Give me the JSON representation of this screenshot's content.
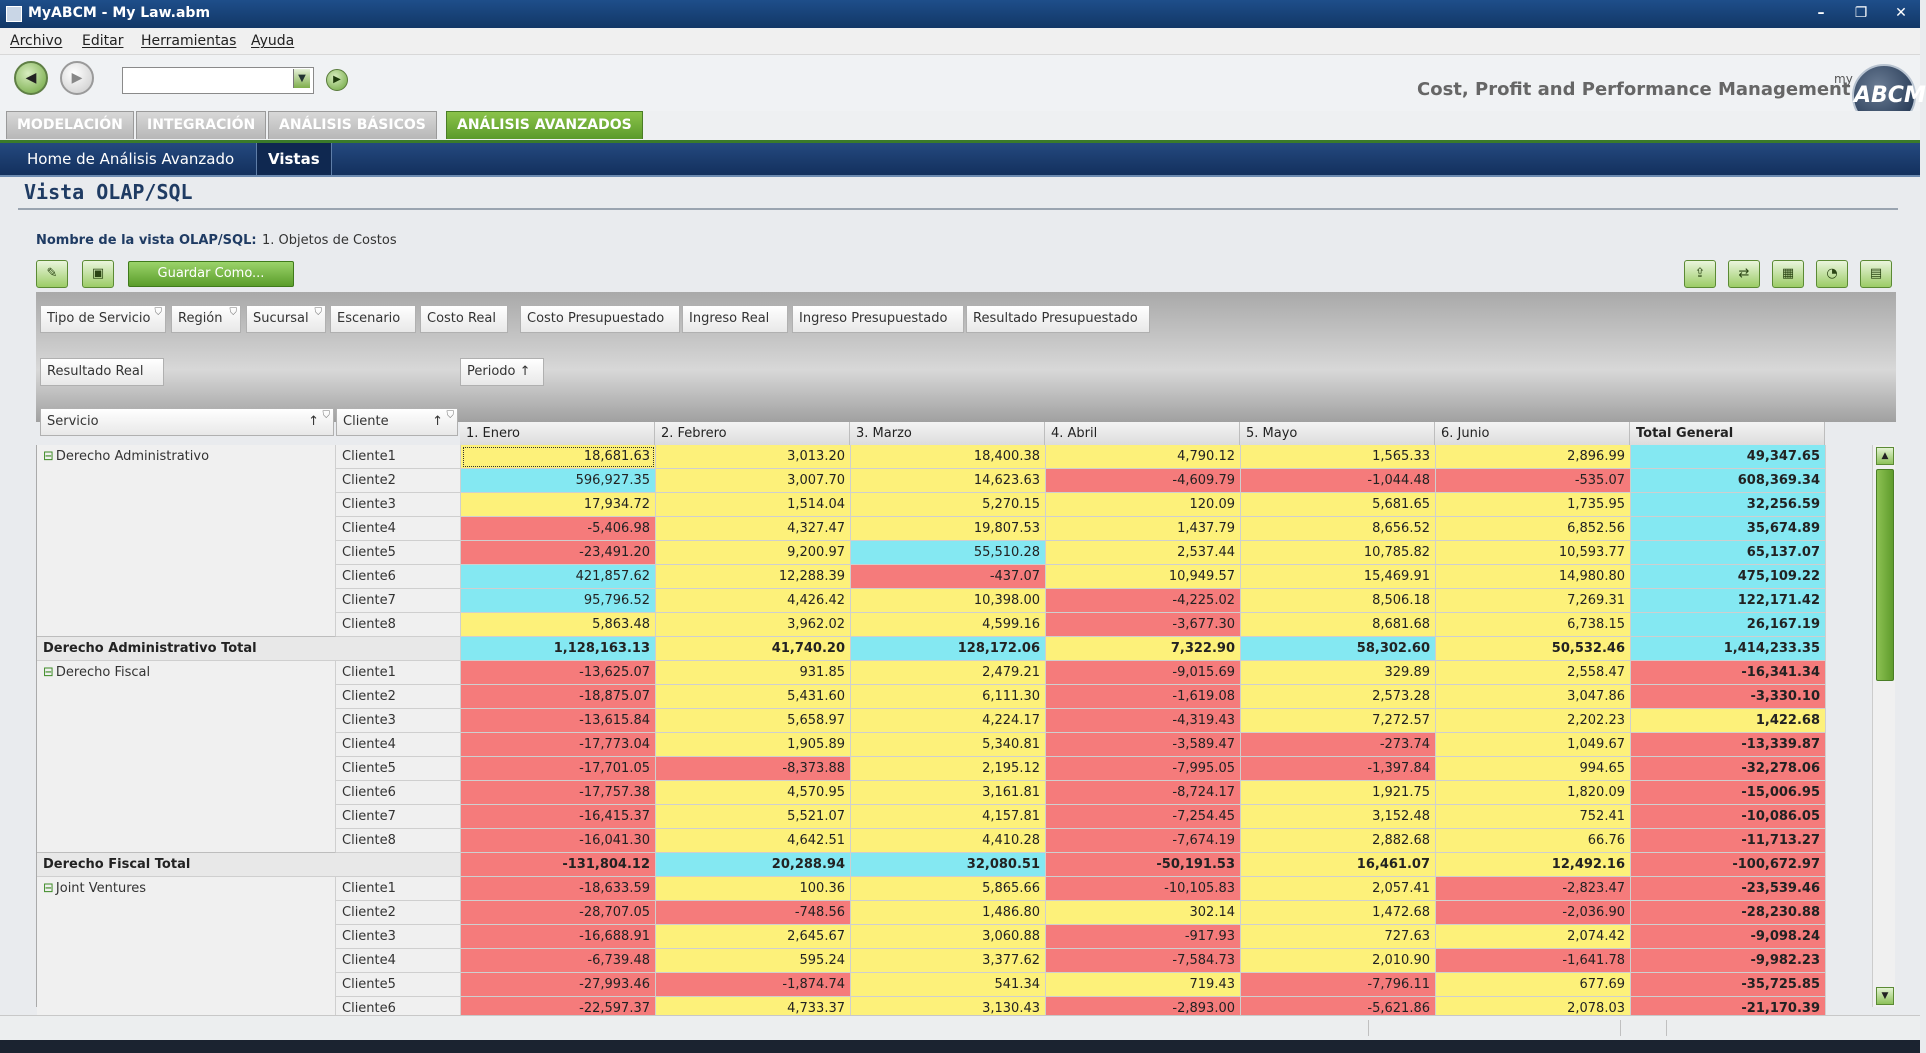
{
  "window": {
    "title": "MyABCM - My Law.abm",
    "min": "–",
    "restore": "❐",
    "close": "✕"
  },
  "menu": [
    "Archivo",
    "Editar",
    "Herramientas",
    "Ayuda"
  ],
  "toolbar": {
    "address_value": "",
    "tagline": "Cost, Profit and Performance Management",
    "logo_my": "my",
    "logo_text": "ABCM"
  },
  "tabs": [
    "MODELACIÓN",
    "INTEGRACIÓN",
    "ANÁLISIS BÁSICOS",
    "ANÁLISIS AVANZADOS"
  ],
  "active_tab": "ANÁLISIS AVANZADOS",
  "subnav": {
    "home": "Home de Análisis Avanzado",
    "vistas": "Vistas"
  },
  "page": {
    "title": "Vista OLAP/SQL",
    "view_label": "Nombre de la vista OLAP/SQL:",
    "view_value": "1. Objetos de Costos",
    "save_as": "Guardar Como..."
  },
  "filter_fields": [
    "Tipo de Servicio",
    "Región",
    "Sucursal",
    "Escenario",
    "Costo Real",
    "Costo Presupuestado",
    "Ingreso Real",
    "Ingreso Presupuestado",
    "Resultado Presupuestado"
  ],
  "data_field": "Resultado Real",
  "column_field": "Periodo",
  "row_fields": [
    "Servicio",
    "Cliente"
  ],
  "columns": [
    "1. Enero",
    "2. Febrero",
    "3. Marzo",
    "4. Abril",
    "5. Mayo",
    "6. Junio",
    "Total General"
  ],
  "groups": [
    {
      "name": "Derecho Administrativo",
      "total_label": "Derecho Administrativo Total",
      "rows": [
        {
          "client": "Cliente1",
          "values": [
            "18,681.63",
            "3,013.20",
            "18,400.38",
            "4,790.12",
            "1,565.33",
            "2,896.99",
            "49,347.65"
          ],
          "colors": [
            "y",
            "y",
            "y",
            "y",
            "y",
            "y",
            "b"
          ]
        },
        {
          "client": "Cliente2",
          "values": [
            "596,927.35",
            "3,007.70",
            "14,623.63",
            "-4,609.79",
            "-1,044.48",
            "-535.07",
            "608,369.34"
          ],
          "colors": [
            "b",
            "y",
            "y",
            "r",
            "r",
            "r",
            "b"
          ]
        },
        {
          "client": "Cliente3",
          "values": [
            "17,934.72",
            "1,514.04",
            "5,270.15",
            "120.09",
            "5,681.65",
            "1,735.95",
            "32,256.59"
          ],
          "colors": [
            "y",
            "y",
            "y",
            "y",
            "y",
            "y",
            "b"
          ]
        },
        {
          "client": "Cliente4",
          "values": [
            "-5,406.98",
            "4,327.47",
            "19,807.53",
            "1,437.79",
            "8,656.52",
            "6,852.56",
            "35,674.89"
          ],
          "colors": [
            "r",
            "y",
            "y",
            "y",
            "y",
            "y",
            "b"
          ]
        },
        {
          "client": "Cliente5",
          "values": [
            "-23,491.20",
            "9,200.97",
            "55,510.28",
            "2,537.44",
            "10,785.82",
            "10,593.77",
            "65,137.07"
          ],
          "colors": [
            "r",
            "y",
            "b",
            "y",
            "y",
            "y",
            "b"
          ]
        },
        {
          "client": "Cliente6",
          "values": [
            "421,857.62",
            "12,288.39",
            "-437.07",
            "10,949.57",
            "15,469.91",
            "14,980.80",
            "475,109.22"
          ],
          "colors": [
            "b",
            "y",
            "r",
            "y",
            "y",
            "y",
            "b"
          ]
        },
        {
          "client": "Cliente7",
          "values": [
            "95,796.52",
            "4,426.42",
            "10,398.00",
            "-4,225.02",
            "8,506.18",
            "7,269.31",
            "122,171.42"
          ],
          "colors": [
            "b",
            "y",
            "y",
            "r",
            "y",
            "y",
            "b"
          ]
        },
        {
          "client": "Cliente8",
          "values": [
            "5,863.48",
            "3,962.02",
            "4,599.16",
            "-3,677.30",
            "8,681.68",
            "6,738.15",
            "26,167.19"
          ],
          "colors": [
            "y",
            "y",
            "y",
            "r",
            "y",
            "y",
            "b"
          ]
        }
      ],
      "total": {
        "values": [
          "1,128,163.13",
          "41,740.20",
          "128,172.06",
          "7,322.90",
          "58,302.60",
          "50,532.46",
          "1,414,233.35"
        ],
        "colors": [
          "b",
          "y",
          "b",
          "y",
          "b",
          "y",
          "b"
        ]
      }
    },
    {
      "name": "Derecho Fiscal",
      "total_label": "Derecho Fiscal Total",
      "rows": [
        {
          "client": "Cliente1",
          "values": [
            "-13,625.07",
            "931.85",
            "2,479.21",
            "-9,015.69",
            "329.89",
            "2,558.47",
            "-16,341.34"
          ],
          "colors": [
            "r",
            "y",
            "y",
            "r",
            "y",
            "y",
            "r"
          ]
        },
        {
          "client": "Cliente2",
          "values": [
            "-18,875.07",
            "5,431.60",
            "6,111.30",
            "-1,619.08",
            "2,573.28",
            "3,047.86",
            "-3,330.10"
          ],
          "colors": [
            "r",
            "y",
            "y",
            "r",
            "y",
            "y",
            "r"
          ]
        },
        {
          "client": "Cliente3",
          "values": [
            "-13,615.84",
            "5,658.97",
            "4,224.17",
            "-4,319.43",
            "7,272.57",
            "2,202.23",
            "1,422.68"
          ],
          "colors": [
            "r",
            "y",
            "y",
            "r",
            "y",
            "y",
            "y"
          ]
        },
        {
          "client": "Cliente4",
          "values": [
            "-17,773.04",
            "1,905.89",
            "5,340.81",
            "-3,589.47",
            "-273.74",
            "1,049.67",
            "-13,339.87"
          ],
          "colors": [
            "r",
            "y",
            "y",
            "r",
            "r",
            "y",
            "r"
          ]
        },
        {
          "client": "Cliente5",
          "values": [
            "-17,701.05",
            "-8,373.88",
            "2,195.12",
            "-7,995.05",
            "-1,397.84",
            "994.65",
            "-32,278.06"
          ],
          "colors": [
            "r",
            "r",
            "y",
            "r",
            "r",
            "y",
            "r"
          ]
        },
        {
          "client": "Cliente6",
          "values": [
            "-17,757.38",
            "4,570.95",
            "3,161.81",
            "-8,724.17",
            "1,921.75",
            "1,820.09",
            "-15,006.95"
          ],
          "colors": [
            "r",
            "y",
            "y",
            "r",
            "y",
            "y",
            "r"
          ]
        },
        {
          "client": "Cliente7",
          "values": [
            "-16,415.37",
            "5,521.07",
            "4,157.81",
            "-7,254.45",
            "3,152.48",
            "752.41",
            "-10,086.05"
          ],
          "colors": [
            "r",
            "y",
            "y",
            "r",
            "y",
            "y",
            "r"
          ]
        },
        {
          "client": "Cliente8",
          "values": [
            "-16,041.30",
            "4,642.51",
            "4,410.28",
            "-7,674.19",
            "2,882.68",
            "66.76",
            "-11,713.27"
          ],
          "colors": [
            "r",
            "y",
            "y",
            "r",
            "y",
            "y",
            "r"
          ]
        }
      ],
      "total": {
        "values": [
          "-131,804.12",
          "20,288.94",
          "32,080.51",
          "-50,191.53",
          "16,461.07",
          "12,492.16",
          "-100,672.97"
        ],
        "colors": [
          "r",
          "b",
          "b",
          "r",
          "y",
          "y",
          "r"
        ]
      }
    },
    {
      "name": "Joint Ventures",
      "total_label": "",
      "rows": [
        {
          "client": "Cliente1",
          "values": [
            "-18,633.59",
            "100.36",
            "5,865.66",
            "-10,105.83",
            "2,057.41",
            "-2,823.47",
            "-23,539.46"
          ],
          "colors": [
            "r",
            "y",
            "y",
            "r",
            "y",
            "r",
            "r"
          ]
        },
        {
          "client": "Cliente2",
          "values": [
            "-28,707.05",
            "-748.56",
            "1,486.80",
            "302.14",
            "1,472.68",
            "-2,036.90",
            "-28,230.88"
          ],
          "colors": [
            "r",
            "r",
            "y",
            "y",
            "y",
            "r",
            "r"
          ]
        },
        {
          "client": "Cliente3",
          "values": [
            "-16,688.91",
            "2,645.67",
            "3,060.88",
            "-917.93",
            "727.63",
            "2,074.42",
            "-9,098.24"
          ],
          "colors": [
            "r",
            "y",
            "y",
            "r",
            "y",
            "y",
            "r"
          ]
        },
        {
          "client": "Cliente4",
          "values": [
            "-6,739.48",
            "595.24",
            "3,377.62",
            "-7,584.73",
            "2,010.90",
            "-1,641.78",
            "-9,982.23"
          ],
          "colors": [
            "r",
            "y",
            "y",
            "r",
            "y",
            "r",
            "r"
          ]
        },
        {
          "client": "Cliente5",
          "values": [
            "-27,993.46",
            "-1,874.74",
            "541.34",
            "719.43",
            "-7,796.11",
            "677.69",
            "-35,725.85"
          ],
          "colors": [
            "r",
            "r",
            "y",
            "y",
            "r",
            "y",
            "r"
          ]
        },
        {
          "client": "Cliente6",
          "values": [
            "-22,597.37",
            "4,733.37",
            "3,130.43",
            "-2,893.00",
            "-5,621.86",
            "2,078.03",
            "-21,170.39"
          ],
          "colors": [
            "r",
            "y",
            "y",
            "r",
            "r",
            "y",
            "r"
          ]
        }
      ]
    }
  ],
  "colors": {
    "yellow": "#fdf17a",
    "red": "#f57b7b",
    "cyan": "#84e8f2",
    "accent": "#5a9a2a",
    "nav": "#1b3d6e"
  }
}
